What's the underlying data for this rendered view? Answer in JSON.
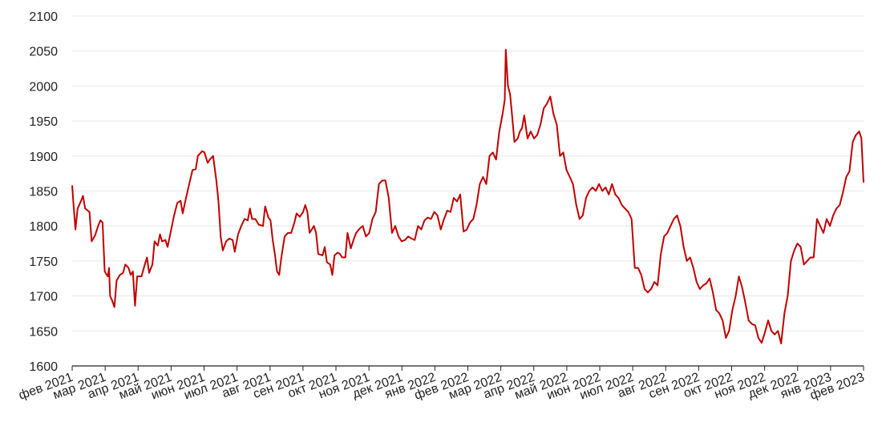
{
  "chart_data": {
    "type": "line",
    "title": "",
    "xlabel": "",
    "ylabel": "",
    "ylim": [
      1600,
      2100
    ],
    "y_ticks": [
      1600,
      1650,
      1700,
      1750,
      1800,
      1850,
      1900,
      1950,
      2000,
      2050,
      2100
    ],
    "x_ticks": [
      "фев 2021",
      "мар 2021",
      "апр 2021",
      "май 2021",
      "июн 2021",
      "июл 2021",
      "авг 2021",
      "сен 2021",
      "окт 2021",
      "ноя 2021",
      "дек 2021",
      "янв 2022",
      "фев 2022",
      "мар 2022",
      "апр 2022",
      "май 2022",
      "июн 2022",
      "июл 2022",
      "авг 2022",
      "сен 2022",
      "окт 2022",
      "ноя 2022",
      "дек 2022",
      "янв 2023",
      "фев 2023"
    ],
    "x_start": "2021-02-01",
    "x_end": "2023-02-01",
    "grid": "horizontal",
    "line_color": "#c00000",
    "series": [
      {
        "points": [
          [
            "2021-02-01",
            1858
          ],
          [
            "2021-02-02",
            1835
          ],
          [
            "2021-02-04",
            1795
          ],
          [
            "2021-02-06",
            1825
          ],
          [
            "2021-02-09",
            1835
          ],
          [
            "2021-02-11",
            1843
          ],
          [
            "2021-02-13",
            1825
          ],
          [
            "2021-02-17",
            1820
          ],
          [
            "2021-02-19",
            1778
          ],
          [
            "2021-02-22",
            1786
          ],
          [
            "2021-02-25",
            1800
          ],
          [
            "2021-02-27",
            1808
          ],
          [
            "2021-03-01",
            1805
          ],
          [
            "2021-03-03",
            1735
          ],
          [
            "2021-03-05",
            1730
          ],
          [
            "2021-03-06",
            1728
          ],
          [
            "2021-03-07",
            1740
          ],
          [
            "2021-03-08",
            1700
          ],
          [
            "2021-03-10",
            1693
          ],
          [
            "2021-03-12",
            1684
          ],
          [
            "2021-03-14",
            1722
          ],
          [
            "2021-03-17",
            1730
          ],
          [
            "2021-03-20",
            1733
          ],
          [
            "2021-03-22",
            1745
          ],
          [
            "2021-03-25",
            1740
          ],
          [
            "2021-03-27",
            1730
          ],
          [
            "2021-03-29",
            1735
          ],
          [
            "2021-03-31",
            1686
          ],
          [
            "2021-04-02",
            1728
          ],
          [
            "2021-04-06",
            1728
          ],
          [
            "2021-04-09",
            1745
          ],
          [
            "2021-04-11",
            1755
          ],
          [
            "2021-04-13",
            1733
          ],
          [
            "2021-04-16",
            1745
          ],
          [
            "2021-04-18",
            1778
          ],
          [
            "2021-04-21",
            1772
          ],
          [
            "2021-04-23",
            1788
          ],
          [
            "2021-04-25",
            1778
          ],
          [
            "2021-04-28",
            1780
          ],
          [
            "2021-04-30",
            1770
          ],
          [
            "2021-05-03",
            1792
          ],
          [
            "2021-05-06",
            1815
          ],
          [
            "2021-05-09",
            1833
          ],
          [
            "2021-05-12",
            1836
          ],
          [
            "2021-05-14",
            1818
          ],
          [
            "2021-05-17",
            1840
          ],
          [
            "2021-05-20",
            1860
          ],
          [
            "2021-05-23",
            1880
          ],
          [
            "2021-05-26",
            1881
          ],
          [
            "2021-05-28",
            1900
          ],
          [
            "2021-06-01",
            1907
          ],
          [
            "2021-06-03",
            1905
          ],
          [
            "2021-06-06",
            1890
          ],
          [
            "2021-06-08",
            1895
          ],
          [
            "2021-06-11",
            1900
          ],
          [
            "2021-06-14",
            1865
          ],
          [
            "2021-06-16",
            1835
          ],
          [
            "2021-06-18",
            1785
          ],
          [
            "2021-06-20",
            1765
          ],
          [
            "2021-06-23",
            1778
          ],
          [
            "2021-06-26",
            1782
          ],
          [
            "2021-06-29",
            1780
          ],
          [
            "2021-07-01",
            1763
          ],
          [
            "2021-07-04",
            1788
          ],
          [
            "2021-07-07",
            1800
          ],
          [
            "2021-07-10",
            1810
          ],
          [
            "2021-07-13",
            1808
          ],
          [
            "2021-07-15",
            1825
          ],
          [
            "2021-07-17",
            1810
          ],
          [
            "2021-07-20",
            1810
          ],
          [
            "2021-07-23",
            1802
          ],
          [
            "2021-07-27",
            1800
          ],
          [
            "2021-07-29",
            1828
          ],
          [
            "2021-08-01",
            1812
          ],
          [
            "2021-08-03",
            1808
          ],
          [
            "2021-08-05",
            1780
          ],
          [
            "2021-08-07",
            1760
          ],
          [
            "2021-08-09",
            1735
          ],
          [
            "2021-08-11",
            1730
          ],
          [
            "2021-08-13",
            1755
          ],
          [
            "2021-08-16",
            1785
          ],
          [
            "2021-08-19",
            1790
          ],
          [
            "2021-08-22",
            1790
          ],
          [
            "2021-08-25",
            1805
          ],
          [
            "2021-08-27",
            1818
          ],
          [
            "2021-08-30",
            1813
          ],
          [
            "2021-09-02",
            1820
          ],
          [
            "2021-09-04",
            1830
          ],
          [
            "2021-09-06",
            1820
          ],
          [
            "2021-09-08",
            1790
          ],
          [
            "2021-09-10",
            1795
          ],
          [
            "2021-09-12",
            1800
          ],
          [
            "2021-09-14",
            1790
          ],
          [
            "2021-09-16",
            1760
          ],
          [
            "2021-09-20",
            1758
          ],
          [
            "2021-09-22",
            1770
          ],
          [
            "2021-09-24",
            1748
          ],
          [
            "2021-09-27",
            1745
          ],
          [
            "2021-09-29",
            1730
          ],
          [
            "2021-10-01",
            1758
          ],
          [
            "2021-10-04",
            1762
          ],
          [
            "2021-10-06",
            1760
          ],
          [
            "2021-10-08",
            1755
          ],
          [
            "2021-10-11",
            1755
          ],
          [
            "2021-10-13",
            1790
          ],
          [
            "2021-10-16",
            1768
          ],
          [
            "2021-10-19",
            1782
          ],
          [
            "2021-10-21",
            1790
          ],
          [
            "2021-10-24",
            1796
          ],
          [
            "2021-10-27",
            1800
          ],
          [
            "2021-10-30",
            1785
          ],
          [
            "2021-11-02",
            1790
          ],
          [
            "2021-11-05",
            1810
          ],
          [
            "2021-11-08",
            1820
          ],
          [
            "2021-11-11",
            1860
          ],
          [
            "2021-11-14",
            1865
          ],
          [
            "2021-11-17",
            1865
          ],
          [
            "2021-11-20",
            1840
          ],
          [
            "2021-11-23",
            1790
          ],
          [
            "2021-11-26",
            1800
          ],
          [
            "2021-11-29",
            1785
          ],
          [
            "2021-12-02",
            1778
          ],
          [
            "2021-12-05",
            1780
          ],
          [
            "2021-12-08",
            1785
          ],
          [
            "2021-12-11",
            1782
          ],
          [
            "2021-12-14",
            1780
          ],
          [
            "2021-12-17",
            1800
          ],
          [
            "2021-12-20",
            1795
          ],
          [
            "2021-12-23",
            1808
          ],
          [
            "2021-12-26",
            1812
          ],
          [
            "2021-12-29",
            1810
          ],
          [
            "2022-01-01",
            1820
          ],
          [
            "2022-01-04",
            1815
          ],
          [
            "2022-01-07",
            1795
          ],
          [
            "2022-01-10",
            1810
          ],
          [
            "2022-01-13",
            1822
          ],
          [
            "2022-01-16",
            1820
          ],
          [
            "2022-01-19",
            1840
          ],
          [
            "2022-01-22",
            1835
          ],
          [
            "2022-01-25",
            1845
          ],
          [
            "2022-01-28",
            1792
          ],
          [
            "2022-01-31",
            1795
          ],
          [
            "2022-02-03",
            1805
          ],
          [
            "2022-02-06",
            1810
          ],
          [
            "2022-02-09",
            1830
          ],
          [
            "2022-02-12",
            1860
          ],
          [
            "2022-02-15",
            1870
          ],
          [
            "2022-02-18",
            1860
          ],
          [
            "2022-02-21",
            1900
          ],
          [
            "2022-02-24",
            1905
          ],
          [
            "2022-02-27",
            1895
          ],
          [
            "2022-03-02",
            1935
          ],
          [
            "2022-03-05",
            1960
          ],
          [
            "2022-03-07",
            1980
          ],
          [
            "2022-03-08",
            2052
          ],
          [
            "2022-03-10",
            2000
          ],
          [
            "2022-03-12",
            1988
          ],
          [
            "2022-03-14",
            1955
          ],
          [
            "2022-03-16",
            1920
          ],
          [
            "2022-03-19",
            1925
          ],
          [
            "2022-03-21",
            1935
          ],
          [
            "2022-03-23",
            1940
          ],
          [
            "2022-03-25",
            1958
          ],
          [
            "2022-03-28",
            1925
          ],
          [
            "2022-03-31",
            1935
          ],
          [
            "2022-04-03",
            1925
          ],
          [
            "2022-04-06",
            1930
          ],
          [
            "2022-04-09",
            1945
          ],
          [
            "2022-04-12",
            1968
          ],
          [
            "2022-04-15",
            1975
          ],
          [
            "2022-04-18",
            1985
          ],
          [
            "2022-04-21",
            1960
          ],
          [
            "2022-04-24",
            1945
          ],
          [
            "2022-04-27",
            1900
          ],
          [
            "2022-04-30",
            1905
          ],
          [
            "2022-05-03",
            1880
          ],
          [
            "2022-05-06",
            1870
          ],
          [
            "2022-05-09",
            1860
          ],
          [
            "2022-05-12",
            1830
          ],
          [
            "2022-05-15",
            1810
          ],
          [
            "2022-05-18",
            1815
          ],
          [
            "2022-05-21",
            1840
          ],
          [
            "2022-05-24",
            1850
          ],
          [
            "2022-05-27",
            1855
          ],
          [
            "2022-05-30",
            1850
          ],
          [
            "2022-06-02",
            1860
          ],
          [
            "2022-06-05",
            1850
          ],
          [
            "2022-06-08",
            1855
          ],
          [
            "2022-06-11",
            1845
          ],
          [
            "2022-06-14",
            1860
          ],
          [
            "2022-06-17",
            1845
          ],
          [
            "2022-06-20",
            1840
          ],
          [
            "2022-06-23",
            1830
          ],
          [
            "2022-06-26",
            1825
          ],
          [
            "2022-06-29",
            1820
          ],
          [
            "2022-07-02",
            1810
          ],
          [
            "2022-07-05",
            1740
          ],
          [
            "2022-07-08",
            1740
          ],
          [
            "2022-07-11",
            1730
          ],
          [
            "2022-07-14",
            1710
          ],
          [
            "2022-07-17",
            1705
          ],
          [
            "2022-07-20",
            1710
          ],
          [
            "2022-07-23",
            1720
          ],
          [
            "2022-07-26",
            1715
          ],
          [
            "2022-07-29",
            1760
          ],
          [
            "2022-08-01",
            1785
          ],
          [
            "2022-08-04",
            1790
          ],
          [
            "2022-08-07",
            1800
          ],
          [
            "2022-08-10",
            1810
          ],
          [
            "2022-08-13",
            1815
          ],
          [
            "2022-08-16",
            1800
          ],
          [
            "2022-08-19",
            1770
          ],
          [
            "2022-08-22",
            1750
          ],
          [
            "2022-08-25",
            1755
          ],
          [
            "2022-08-28",
            1740
          ],
          [
            "2022-08-31",
            1720
          ],
          [
            "2022-09-03",
            1710
          ],
          [
            "2022-09-06",
            1715
          ],
          [
            "2022-09-09",
            1718
          ],
          [
            "2022-09-12",
            1725
          ],
          [
            "2022-09-15",
            1705
          ],
          [
            "2022-09-18",
            1680
          ],
          [
            "2022-09-21",
            1675
          ],
          [
            "2022-09-24",
            1665
          ],
          [
            "2022-09-27",
            1640
          ],
          [
            "2022-09-30",
            1650
          ],
          [
            "2022-10-03",
            1680
          ],
          [
            "2022-10-06",
            1700
          ],
          [
            "2022-10-09",
            1728
          ],
          [
            "2022-10-12",
            1712
          ],
          [
            "2022-10-15",
            1690
          ],
          [
            "2022-10-18",
            1665
          ],
          [
            "2022-10-21",
            1660
          ],
          [
            "2022-10-24",
            1658
          ],
          [
            "2022-10-27",
            1640
          ],
          [
            "2022-10-30",
            1633
          ],
          [
            "2022-11-02",
            1648
          ],
          [
            "2022-11-05",
            1665
          ],
          [
            "2022-11-08",
            1650
          ],
          [
            "2022-11-11",
            1645
          ],
          [
            "2022-11-14",
            1650
          ],
          [
            "2022-11-17",
            1632
          ],
          [
            "2022-11-20",
            1675
          ],
          [
            "2022-11-23",
            1700
          ],
          [
            "2022-11-26",
            1750
          ],
          [
            "2022-11-29",
            1765
          ],
          [
            "2022-12-02",
            1775
          ],
          [
            "2022-12-05",
            1770
          ],
          [
            "2022-12-08",
            1745
          ],
          [
            "2022-12-11",
            1750
          ],
          [
            "2022-12-14",
            1755
          ],
          [
            "2022-12-17",
            1755
          ],
          [
            "2022-12-20",
            1810
          ],
          [
            "2022-12-23",
            1800
          ],
          [
            "2022-12-26",
            1790
          ],
          [
            "2022-12-29",
            1810
          ],
          [
            "2023-01-01",
            1800
          ],
          [
            "2023-01-04",
            1815
          ],
          [
            "2023-01-07",
            1825
          ],
          [
            "2023-01-10",
            1830
          ],
          [
            "2023-01-13",
            1848
          ],
          [
            "2023-01-16",
            1870
          ],
          [
            "2023-01-19",
            1878
          ],
          [
            "2023-01-22",
            1920
          ],
          [
            "2023-01-25",
            1930
          ],
          [
            "2023-01-28",
            1935
          ],
          [
            "2023-01-30",
            1925
          ],
          [
            "2023-02-01",
            1862
          ]
        ]
      }
    ]
  }
}
